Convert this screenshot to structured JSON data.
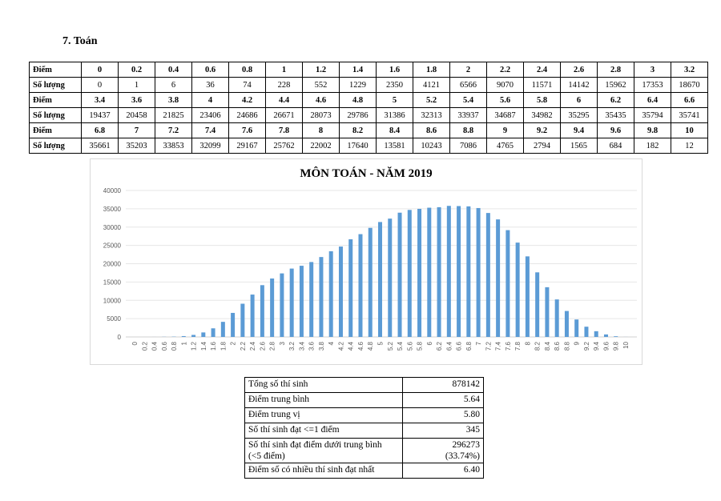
{
  "heading": "7.  Toán",
  "score_table": {
    "row_label_score": "Điểm",
    "row_label_count": "Số lượng",
    "blocks": [
      {
        "scores": [
          "0",
          "0.2",
          "0.4",
          "0.6",
          "0.8",
          "1",
          "1.2",
          "1.4",
          "1.6",
          "1.8",
          "2",
          "2.2",
          "2.4",
          "2.6",
          "2.8",
          "3",
          "3.2"
        ],
        "counts": [
          "0",
          "1",
          "6",
          "36",
          "74",
          "228",
          "552",
          "1229",
          "2350",
          "4121",
          "6566",
          "9070",
          "11571",
          "14142",
          "15962",
          "17353",
          "18670"
        ]
      },
      {
        "scores": [
          "3.4",
          "3.6",
          "3.8",
          "4",
          "4.2",
          "4.4",
          "4.6",
          "4.8",
          "5",
          "5.2",
          "5.4",
          "5.6",
          "5.8",
          "6",
          "6.2",
          "6.4",
          "6.6"
        ],
        "counts": [
          "19437",
          "20458",
          "21825",
          "23406",
          "24686",
          "26671",
          "28073",
          "29786",
          "31386",
          "32313",
          "33937",
          "34687",
          "34982",
          "35295",
          "35435",
          "35794",
          "35741"
        ]
      },
      {
        "scores": [
          "6.8",
          "7",
          "7.2",
          "7.4",
          "7.6",
          "7.8",
          "8",
          "8.2",
          "8.4",
          "8.6",
          "8.8",
          "9",
          "9.2",
          "9.4",
          "9.6",
          "9.8",
          "10"
        ],
        "counts": [
          "35661",
          "35203",
          "33853",
          "32099",
          "29167",
          "25762",
          "22002",
          "17640",
          "13581",
          "10243",
          "7086",
          "4765",
          "2794",
          "1565",
          "684",
          "182",
          "12"
        ]
      }
    ]
  },
  "chart_data": {
    "type": "bar",
    "title": "MÔN TOÁN - NĂM 2019",
    "categories": [
      "0",
      "0.2",
      "0.4",
      "0.6",
      "0.8",
      "1",
      "1.2",
      "1.4",
      "1.6",
      "1.8",
      "2",
      "2.2",
      "2.4",
      "2.6",
      "2.8",
      "3",
      "3.2",
      "3.4",
      "3.6",
      "3.8",
      "4",
      "4.2",
      "4.4",
      "4.6",
      "4.8",
      "5",
      "5.2",
      "5.4",
      "5.6",
      "5.8",
      "6",
      "6.2",
      "6.4",
      "6.6",
      "6.8",
      "7",
      "7.2",
      "7.4",
      "7.6",
      "7.8",
      "8",
      "8.2",
      "8.4",
      "8.6",
      "8.8",
      "9",
      "9.2",
      "9.4",
      "9.6",
      "9.8",
      "10"
    ],
    "values": [
      0,
      1,
      6,
      36,
      74,
      228,
      552,
      1229,
      2350,
      4121,
      6566,
      9070,
      11571,
      14142,
      15962,
      17353,
      18670,
      19437,
      20458,
      21825,
      23406,
      24686,
      26671,
      28073,
      29786,
      31386,
      32313,
      33937,
      34687,
      34982,
      35295,
      35435,
      35794,
      35741,
      35661,
      35203,
      33853,
      32099,
      29167,
      25762,
      22002,
      17640,
      13581,
      10243,
      7086,
      4765,
      2794,
      1565,
      684,
      182,
      12
    ],
    "ylim": [
      0,
      40000
    ],
    "yticks": [
      "0",
      "5000",
      "10000",
      "15000",
      "20000",
      "25000",
      "30000",
      "35000",
      "40000"
    ],
    "grid": true,
    "bar_color": "#5b9bd5"
  },
  "stats": [
    {
      "label": "Tổng số thí sinh",
      "value": "878142"
    },
    {
      "label": "Điểm trung bình",
      "value": "5.64"
    },
    {
      "label": "Điểm trung vị",
      "value": "5.80"
    },
    {
      "label": "Số thí sinh đạt <=1 điểm",
      "value": "345"
    },
    {
      "label": "Số thí sinh đạt điểm dưới trung bình",
      "label2": "(<5 điểm)",
      "value": "296273",
      "value2": "(33.74%)"
    },
    {
      "label": "Điểm số có nhiều thí sinh đạt nhất",
      "value": "6.40"
    }
  ]
}
